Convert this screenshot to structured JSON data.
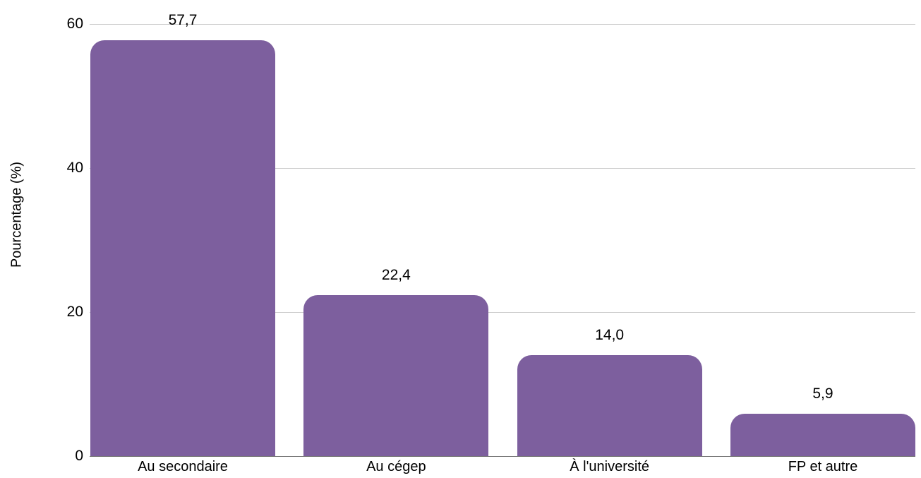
{
  "chart_data": {
    "type": "bar",
    "categories": [
      "Au secondaire",
      "Au cégep",
      "À l'université",
      "FP et autre"
    ],
    "values": [
      57.7,
      22.4,
      14.0,
      5.9
    ],
    "value_labels": [
      "57,7",
      "22,4",
      "14,0",
      "5,9"
    ],
    "title": "",
    "xlabel": "",
    "ylabel": "Pourcentage (%)",
    "ylim": [
      0,
      60
    ],
    "yticks": [
      0,
      20,
      40,
      60
    ],
    "ytick_labels": [
      "0",
      "20",
      "40",
      "60"
    ],
    "grid": true,
    "legend_position": "none",
    "decimal_separator": ","
  },
  "colors": {
    "bar": "#7D5F9E",
    "gridline": "#cccccc",
    "axis_line": "#757575",
    "text": "#000000",
    "background": "#ffffff"
  }
}
